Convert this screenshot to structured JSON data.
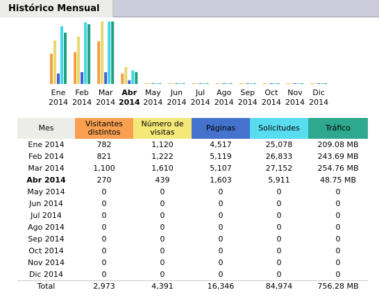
{
  "header": {
    "title": "Histórico Mensual"
  },
  "colors": {
    "visitors": "#f0a040",
    "visits": "#e8d870",
    "pages": "#4060d0",
    "hits": "#40d8e8",
    "bandwidth": "#20a080"
  },
  "table": {
    "headers": {
      "month": "Mes",
      "visitors_1": "Visitantes",
      "visitors_2": "distintos",
      "visits_1": "Número de",
      "visits_2": "visitas",
      "pages": "Páginas",
      "hits": "Solicitudes",
      "bandwidth": "Tráfico"
    },
    "rows": [
      {
        "month": "Ene 2014",
        "visitors": "782",
        "visits": "1,120",
        "pages": "4,517",
        "hits": "25,078",
        "bandwidth": "209.08 MB"
      },
      {
        "month": "Feb 2014",
        "visitors": "821",
        "visits": "1,222",
        "pages": "5,119",
        "hits": "26,833",
        "bandwidth": "243.69 MB"
      },
      {
        "month": "Mar 2014",
        "visitors": "1,100",
        "visits": "1,610",
        "pages": "5,107",
        "hits": "27,152",
        "bandwidth": "254.76 MB"
      },
      {
        "month": "Abr 2014",
        "visitors": "270",
        "visits": "439",
        "pages": "1,603",
        "hits": "5,911",
        "bandwidth": "48.75 MB"
      },
      {
        "month": "May 2014",
        "visitors": "0",
        "visits": "0",
        "pages": "0",
        "hits": "0",
        "bandwidth": "0"
      },
      {
        "month": "Jun 2014",
        "visitors": "0",
        "visits": "0",
        "pages": "0",
        "hits": "0",
        "bandwidth": "0"
      },
      {
        "month": "Jul 2014",
        "visitors": "0",
        "visits": "0",
        "pages": "0",
        "hits": "0",
        "bandwidth": "0"
      },
      {
        "month": "Ago 2014",
        "visitors": "0",
        "visits": "0",
        "pages": "0",
        "hits": "0",
        "bandwidth": "0"
      },
      {
        "month": "Sep 2014",
        "visitors": "0",
        "visits": "0",
        "pages": "0",
        "hits": "0",
        "bandwidth": "0"
      },
      {
        "month": "Oct 2014",
        "visitors": "0",
        "visits": "0",
        "pages": "0",
        "hits": "0",
        "bandwidth": "0"
      },
      {
        "month": "Nov 2014",
        "visitors": "0",
        "visits": "0",
        "pages": "0",
        "hits": "0",
        "bandwidth": "0"
      },
      {
        "month": "Dic 2014",
        "visitors": "0",
        "visits": "0",
        "pages": "0",
        "hits": "0",
        "bandwidth": "0"
      }
    ],
    "total": {
      "label": "Total",
      "visitors": "2,973",
      "visits": "4,391",
      "pages": "16,346",
      "hits": "84,974",
      "bandwidth": "756.28 MB"
    }
  },
  "chart_data": {
    "type": "bar",
    "categories": [
      "Ene 2014",
      "Feb 2014",
      "Mar 2014",
      "Abr 2014",
      "May 2014",
      "Jun 2014",
      "Jul 2014",
      "Ago 2014",
      "Sep 2014",
      "Oct 2014",
      "Nov 2014",
      "Dic 2014"
    ],
    "category_labels": [
      [
        "Ene",
        "2014"
      ],
      [
        "Feb",
        "2014"
      ],
      [
        "Mar",
        "2014"
      ],
      [
        "Abr",
        "2014"
      ],
      [
        "May",
        "2014"
      ],
      [
        "Jun",
        "2014"
      ],
      [
        "Jul",
        "2014"
      ],
      [
        "Ago",
        "2014"
      ],
      [
        "Sep",
        "2014"
      ],
      [
        "Oct",
        "2014"
      ],
      [
        "Nov",
        "2014"
      ],
      [
        "Dic",
        "2014"
      ]
    ],
    "highlight_category": 3,
    "series": [
      {
        "values": [
          782,
          821,
          1100,
          270,
          0,
          0,
          0,
          0,
          0,
          0,
          0,
          0
        ]
      },
      {
        "values": [
          1120,
          1222,
          1610,
          439,
          0,
          0,
          0,
          0,
          0,
          0,
          0,
          0
        ]
      },
      {
        "values": [
          4517,
          5119,
          5107,
          1603,
          0,
          0,
          0,
          0,
          0,
          0,
          0,
          0
        ]
      },
      {
        "values": [
          25078,
          26833,
          27152,
          5911,
          0,
          0,
          0,
          0,
          0,
          0,
          0,
          0
        ]
      },
      {
        "values": [
          209.08,
          243.69,
          254.76,
          48.75,
          0,
          0,
          0,
          0,
          0,
          0,
          0,
          0
        ]
      }
    ],
    "scale_groups": [
      [
        0,
        1
      ],
      [
        2,
        3
      ],
      [
        4
      ]
    ]
  }
}
